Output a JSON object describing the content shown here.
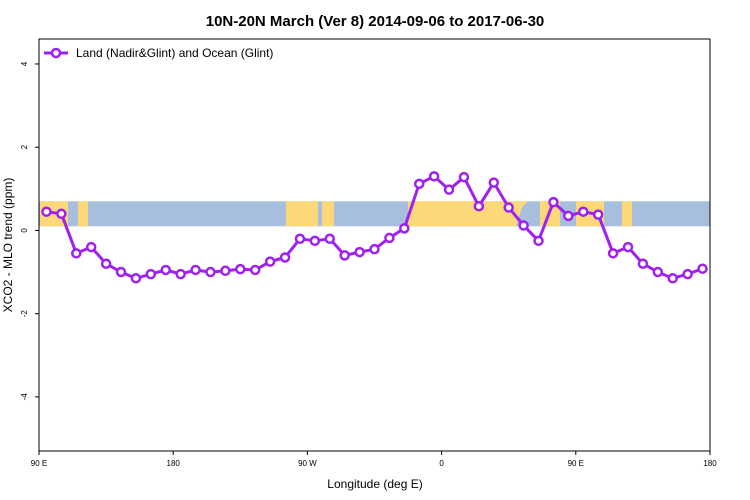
{
  "chart_data": {
    "type": "line",
    "title": "10N-20N March (Ver 8)   2014-09-06 to 2017-06-30",
    "xlabel": "Longitude (deg E)",
    "ylabel": "XCO2 - MLO trend (ppm)",
    "xlim": [
      90,
      450
    ],
    "ylim": [
      -5.3,
      4.6
    ],
    "x_ticks": [
      {
        "value": 90,
        "label": "90 E"
      },
      {
        "value": 162,
        "label": "180"
      },
      {
        "value": 234,
        "label": "90 W"
      },
      {
        "value": 306,
        "label": "0"
      },
      {
        "value": 378,
        "label": "90 E"
      },
      {
        "value": 450,
        "label": "180"
      }
    ],
    "y_ticks": [
      {
        "value": 4,
        "label": "4"
      },
      {
        "value": 2,
        "label": "2"
      },
      {
        "value": 0,
        "label": "0"
      },
      {
        "value": -2,
        "label": "-2"
      },
      {
        "value": -4,
        "label": "-4"
      }
    ],
    "grid": false,
    "legend_position": "top-left",
    "background_map": {
      "band_y_range": [
        0.1,
        0.7
      ],
      "ocean_color": "#a7bedc",
      "land_color": "#fcd878"
    },
    "series": [
      {
        "name": "Land (Nadir&Glint) and Ocean (Glint)",
        "color": "#a020f0",
        "x": [
          94,
          102,
          110,
          118,
          126,
          134,
          142,
          150,
          158,
          166,
          174,
          182,
          190,
          198,
          206,
          214,
          222,
          230,
          238,
          246,
          254,
          262,
          270,
          278,
          286,
          294,
          302,
          310,
          318,
          326,
          334,
          342,
          350,
          358,
          366,
          374,
          382,
          390,
          398,
          406,
          414,
          422,
          430,
          438,
          446
        ],
        "y": [
          0.45,
          0.4,
          -0.55,
          -0.4,
          -0.8,
          -1.0,
          -1.15,
          -1.05,
          -0.95,
          -1.05,
          -0.95,
          -1.0,
          -0.97,
          -0.93,
          -0.95,
          -0.75,
          -0.65,
          -0.2,
          -0.25,
          -0.2,
          -0.6,
          -0.52,
          -0.45,
          -0.18,
          0.05,
          1.12,
          1.3,
          0.98,
          1.28,
          0.58,
          1.15,
          0.55,
          0.12,
          -0.25,
          0.68,
          0.35,
          0.45,
          0.38,
          -0.55,
          -0.4,
          -0.8,
          -1.0,
          -1.15,
          -1.05,
          -0.92
        ]
      }
    ]
  }
}
